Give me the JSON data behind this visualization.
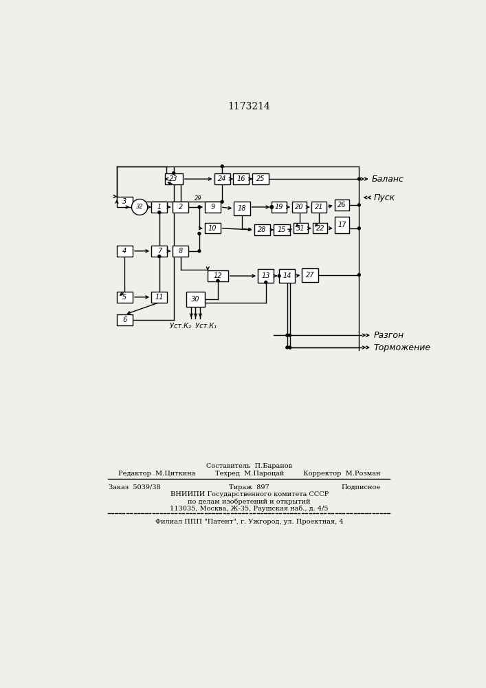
{
  "title": "1173214",
  "bg_color": "#f0f0eb",
  "box_color": "#ffffff",
  "line_color": "#000000",
  "footer": {
    "sestavitel": "Составитель  П.Баранов",
    "tehred": "Техред  М.Пароцай",
    "redaktor": "Редактор  М.Циткина",
    "korrektor": "Корректор  М.Розман",
    "zakaz": "Заказ  5039/38",
    "tirazh": "Тираж  897",
    "podpisnoe": "Подписное",
    "vniip1": "ВНИИПИ Государственного комитета СССР",
    "vniip2": "по делам изобретений и открытий",
    "vniip3": "113035, Москва, Ж-35, Раушская наб., д. 4/5",
    "filial": "Филиал ППП \"Патент\", г. Ужгород, ул. Проектная, 4"
  },
  "labels_out": [
    "Баланс",
    "Пуск",
    "Разгон",
    "Торможение"
  ],
  "labels_in": [
    "Уст.К₂",
    "Уст.К₁"
  ]
}
